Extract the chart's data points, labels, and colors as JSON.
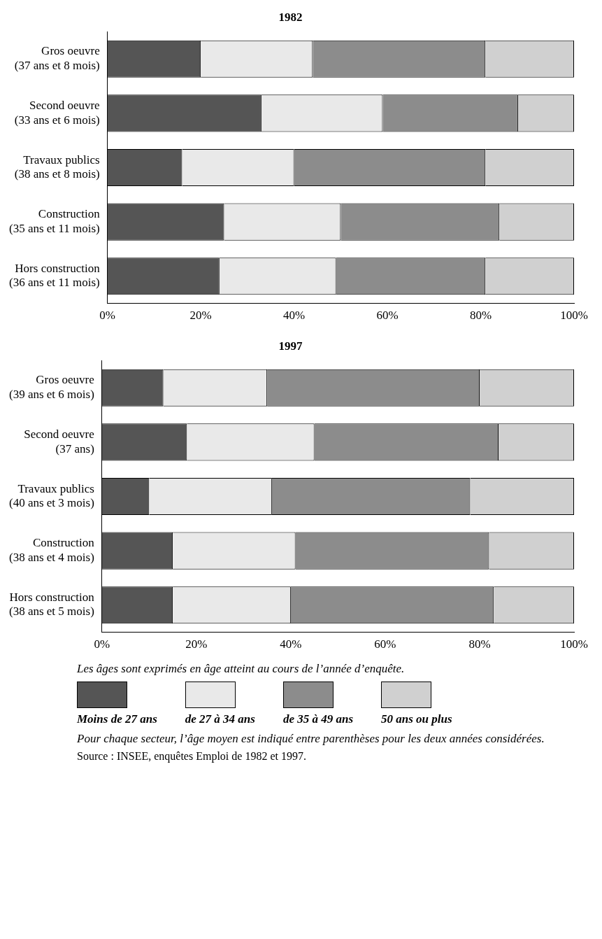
{
  "chart_data": [
    {
      "type": "bar",
      "title": "1982",
      "orientation": "horizontal",
      "stacked": true,
      "legend": false,
      "categories": [
        "Gros oeuvre\n(37 ans et 8 mois)",
        "Second oeuvre\n(33 ans et 6 mois)",
        "Travaux publics\n(38 ans et 8 mois)",
        "Construction\n(35 ans et 11 mois)",
        "Hors construction\n(36 ans et 11 mois)"
      ],
      "series": [
        {
          "color": "#555555",
          "values": [
            20,
            33,
            16,
            25,
            24
          ]
        },
        {
          "color": "#e9e9e9",
          "values": [
            24,
            26,
            24,
            25,
            25
          ]
        },
        {
          "color": "#8c8c8c",
          "values": [
            37,
            29,
            41,
            34,
            32
          ]
        },
        {
          "color": "#d0d0d0",
          "values": [
            19,
            12,
            19,
            16,
            19
          ]
        }
      ],
      "xlim": [
        0,
        100
      ],
      "xticks": [
        {
          "value": 0,
          "label": "0%"
        },
        {
          "value": 20,
          "label": "20%"
        },
        {
          "value": 40,
          "label": "40%"
        },
        {
          "value": 60,
          "label": "60%"
        },
        {
          "value": 80,
          "label": "80%"
        },
        {
          "value": 100,
          "label": "100%"
        }
      ]
    },
    {
      "type": "bar",
      "title": "1997",
      "orientation": "horizontal",
      "stacked": true,
      "legend": "bottom",
      "categories": [
        "Gros oeuvre\n(39 ans et 6 mois)",
        "Second oeuvre\n(37 ans)",
        "Travaux publics\n(40 ans et 3 mois)",
        "Construction\n(38 ans et 4 mois)",
        "Hors construction\n(38 ans et 5 mois)"
      ],
      "series": [
        {
          "name": "Moins de 27 ans",
          "color": "#555555",
          "values": [
            13,
            18,
            10,
            15,
            15
          ]
        },
        {
          "name": "de 27 à 34 ans",
          "color": "#e9e9e9",
          "values": [
            22,
            27,
            26,
            26,
            25
          ]
        },
        {
          "name": "de 35 à 49 ans",
          "color": "#8c8c8c",
          "values": [
            45,
            39,
            42,
            41,
            43
          ]
        },
        {
          "name": "50 ans ou plus",
          "color": "#d0d0d0",
          "values": [
            20,
            16,
            22,
            18,
            17
          ]
        }
      ],
      "xlim": [
        0,
        100
      ],
      "xticks": [
        {
          "value": 0,
          "label": "0%"
        },
        {
          "value": 20,
          "label": "20%"
        },
        {
          "value": 40,
          "label": "40%"
        },
        {
          "value": 60,
          "label": "60%"
        },
        {
          "value": 80,
          "label": "80%"
        },
        {
          "value": 100,
          "label": "100%"
        }
      ],
      "annotations": [
        "Les âges sont exprimés en âge atteint au cours de l’année d’enquête.",
        "Pour chaque secteur, l’âge moyen est indiqué entre parenthèses pour les deux années considérées.",
        "Source : INSEE, enquêtes Emploi de 1982 et 1997."
      ]
    }
  ]
}
